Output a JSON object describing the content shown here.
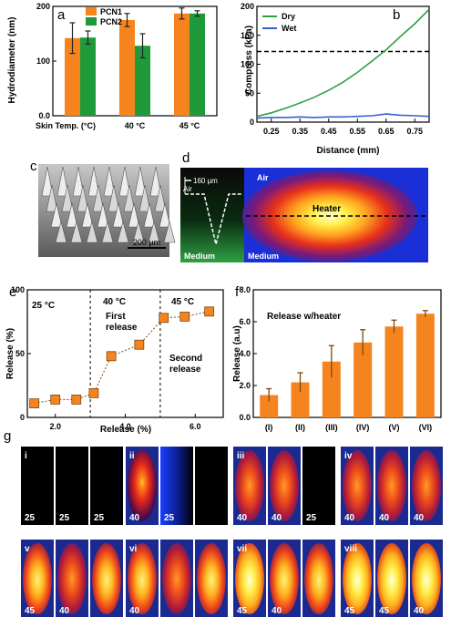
{
  "panel_letters": {
    "a": "a",
    "b": "b",
    "c": "c",
    "d": "d",
    "e": "e",
    "f": "f",
    "g": "g"
  },
  "colors": {
    "orange": "#f5841f",
    "green": "#1f9a3a",
    "dry": "#2ea043",
    "wet": "#3a5fd0",
    "marker_edge": "#7a4a10"
  },
  "chart_data": [
    {
      "type": "bar",
      "panel": "a",
      "ylabel": "Hydrodiameter (nm)",
      "xlabel": "",
      "ylim": [
        0,
        200
      ],
      "yticks": [
        "0.0",
        "100",
        "200"
      ],
      "categories": [
        "Skin Temp. (°C)",
        "40 °C",
        "45 °C"
      ],
      "legend_position": "top-left",
      "series": [
        {
          "name": "PCN1",
          "color": "#f5841f",
          "values": [
            142,
            175,
            187
          ],
          "errors": [
            28,
            12,
            10
          ]
        },
        {
          "name": "PCN2",
          "color": "#1f9a3a",
          "values": [
            143,
            128,
            187
          ],
          "errors": [
            12,
            22,
            5
          ]
        }
      ]
    },
    {
      "type": "line",
      "panel": "b",
      "xlabel": "Distance (mm)",
      "ylabel": "Compress (kPa)",
      "xlim": [
        0.2,
        0.8
      ],
      "ylim": [
        0,
        200
      ],
      "xticks": [
        "0.25",
        "0.35",
        "0.45",
        "0.55",
        "0.65",
        "0.75"
      ],
      "yticks": [
        "0",
        "50",
        "100",
        "150",
        "200"
      ],
      "reference_line": {
        "y": 122,
        "style": "dashed"
      },
      "legend_position": "top-left",
      "series": [
        {
          "name": "Dry",
          "color": "#2ea043",
          "x": [
            0.2,
            0.25,
            0.3,
            0.35,
            0.4,
            0.45,
            0.5,
            0.55,
            0.6,
            0.65,
            0.7,
            0.75,
            0.8
          ],
          "y": [
            10,
            16,
            24,
            33,
            43,
            55,
            69,
            86,
            105,
            125,
            148,
            170,
            195
          ]
        },
        {
          "name": "Wet",
          "color": "#3a5fd0",
          "x": [
            0.2,
            0.25,
            0.3,
            0.35,
            0.4,
            0.45,
            0.5,
            0.55,
            0.6,
            0.65,
            0.7,
            0.75,
            0.8
          ],
          "y": [
            7,
            8,
            8,
            9,
            8,
            9,
            9,
            10,
            11,
            14,
            12,
            11,
            10
          ]
        }
      ]
    },
    {
      "type": "scatter",
      "panel": "e",
      "xlabel": "Release (%)",
      "ylabel": "Release (%)",
      "xlim": [
        1.2,
        6.8
      ],
      "ylim": [
        0,
        100
      ],
      "xticks": [
        "2.0",
        "4.0",
        "6.0"
      ],
      "yticks": [
        "0",
        "50",
        "100"
      ],
      "dividers_x": [
        3.0,
        5.0
      ],
      "region_labels": [
        "25 °C",
        "40 °C",
        "45 °C"
      ],
      "annotations": [
        "First",
        "release",
        "Second",
        "release"
      ],
      "x": [
        1.4,
        2.0,
        2.6,
        3.1,
        3.6,
        4.4,
        5.1,
        5.7,
        6.4
      ],
      "y": [
        11,
        14,
        14,
        19,
        48,
        57,
        78,
        79,
        83
      ]
    },
    {
      "type": "bar",
      "panel": "f",
      "ylabel": "Release (a.u)",
      "xlabel": "",
      "title": "Release w/heater",
      "ylim": [
        0,
        8
      ],
      "yticks": [
        "0.0",
        "2.0",
        "4.0",
        "6.0",
        "8.0"
      ],
      "categories": [
        "(I)",
        "(II)",
        "(III)",
        "(IV)",
        "(V)",
        "(VI)"
      ],
      "values": [
        1.4,
        2.2,
        3.5,
        4.7,
        5.7,
        6.5
      ],
      "errors": [
        0.4,
        0.6,
        1.0,
        0.8,
        0.4,
        0.2
      ]
    }
  ],
  "panel_c": {
    "scale_label": "200 µm"
  },
  "panel_d": {
    "scale_label": "160 µm",
    "air1": "Air",
    "air2": "Air",
    "medium1": "Medium",
    "medium2": "Medium",
    "heater": "Heater"
  },
  "panel_g": {
    "rows": [
      {
        "groups": [
          {
            "roman": "i",
            "cells": [
              {
                "t": "25",
                "k": 0
              },
              {
                "t": "25",
                "k": 0
              },
              {
                "t": "25",
                "k": 0
              }
            ]
          },
          {
            "roman": "ii",
            "cells": [
              {
                "t": "40",
                "k": 1
              },
              {
                "t": "25",
                "k": 5
              },
              {
                "t": "",
                "k": 0
              }
            ]
          },
          {
            "roman": "iii",
            "cells": [
              {
                "t": "40",
                "k": 2
              },
              {
                "t": "40",
                "k": 2
              },
              {
                "t": "25",
                "k": 0
              }
            ]
          },
          {
            "roman": "iv",
            "cells": [
              {
                "t": "40",
                "k": 2
              },
              {
                "t": "40",
                "k": 2
              },
              {
                "t": "40",
                "k": 2
              }
            ]
          }
        ]
      },
      {
        "groups": [
          {
            "roman": "v",
            "cells": [
              {
                "t": "45",
                "k": 3
              },
              {
                "t": "40",
                "k": 2
              },
              {
                "t": "",
                "k": 3
              }
            ]
          },
          {
            "roman": "vi",
            "cells": [
              {
                "t": "40",
                "k": 3
              },
              {
                "t": "",
                "k": 2
              },
              {
                "t": "",
                "k": 3
              }
            ]
          },
          {
            "roman": "vii",
            "cells": [
              {
                "t": "45",
                "k": 4
              },
              {
                "t": "40",
                "k": 3
              },
              {
                "t": "",
                "k": 3
              }
            ]
          },
          {
            "roman": "viii",
            "cells": [
              {
                "t": "45",
                "k": 4
              },
              {
                "t": "45",
                "k": 4
              },
              {
                "t": "40",
                "k": 4
              }
            ]
          }
        ]
      }
    ]
  }
}
